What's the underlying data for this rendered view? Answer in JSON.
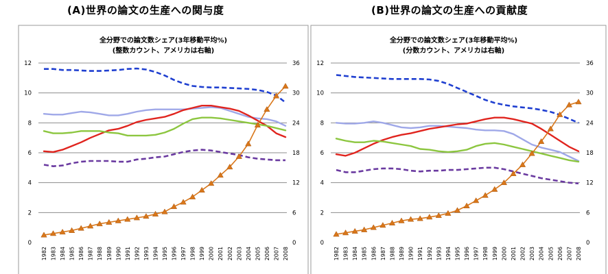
{
  "header": {
    "title_a": "(A)世界の論文の生産への関与度",
    "title_b": "(B)世界の論文の生産への貢献度"
  },
  "colors": {
    "blue_dashed": "#1f3fd0",
    "lavender": "#9fa8e8",
    "red": "#e0241e",
    "green": "#8cc63f",
    "purple_dashed": "#6a3aa0",
    "orange_marker": "#d9771a"
  },
  "chart_data": [
    {
      "type": "line",
      "title": "全分野での論文数シェア(3年移動平均%)",
      "subtitle": "(整数カウント、アメリカは右軸)",
      "x": [
        1982,
        1983,
        1984,
        1985,
        1986,
        1987,
        1988,
        1989,
        1990,
        1991,
        1992,
        1993,
        1994,
        1995,
        1996,
        1997,
        1998,
        1999,
        2000,
        2001,
        2002,
        2003,
        2004,
        2005,
        2006,
        2007,
        2008
      ],
      "left_ticks": [
        "0",
        "2",
        "4",
        "6",
        "8",
        "10",
        "12"
      ],
      "right_ticks": [
        "0",
        "6",
        "12",
        "18",
        "24",
        "30",
        "36"
      ],
      "ylim": [
        0,
        12
      ],
      "y2lim": [
        0,
        36
      ],
      "grid": true,
      "series": [
        {
          "color": "blue_dashed",
          "style": "dashed",
          "axis": "right",
          "values": [
            34.8,
            34.8,
            34.6,
            34.6,
            34.5,
            34.4,
            34.4,
            34.5,
            34.6,
            34.8,
            34.9,
            34.7,
            34.2,
            33.5,
            32.6,
            31.9,
            31.4,
            31.2,
            31.1,
            31.1,
            31.0,
            30.9,
            30.8,
            30.6,
            30.2,
            29.5,
            28.1
          ]
        },
        {
          "color": "lavender",
          "style": "solid",
          "axis": "left",
          "values": [
            8.6,
            8.55,
            8.55,
            8.65,
            8.75,
            8.7,
            8.6,
            8.5,
            8.5,
            8.6,
            8.75,
            8.85,
            8.9,
            8.9,
            8.9,
            8.9,
            8.95,
            9.0,
            9.05,
            9.0,
            8.8,
            8.6,
            8.4,
            8.3,
            8.25,
            8.1,
            7.8
          ]
        },
        {
          "color": "red",
          "style": "solid",
          "axis": "left",
          "values": [
            6.1,
            6.05,
            6.2,
            6.45,
            6.7,
            7.0,
            7.25,
            7.5,
            7.6,
            7.8,
            8.05,
            8.2,
            8.3,
            8.4,
            8.6,
            8.85,
            9.0,
            9.15,
            9.15,
            9.05,
            8.95,
            8.8,
            8.5,
            8.15,
            7.8,
            7.3,
            7.05
          ]
        },
        {
          "color": "green",
          "style": "solid",
          "axis": "left",
          "values": [
            7.45,
            7.3,
            7.3,
            7.35,
            7.45,
            7.45,
            7.45,
            7.35,
            7.3,
            7.15,
            7.15,
            7.15,
            7.2,
            7.35,
            7.6,
            7.95,
            8.25,
            8.35,
            8.35,
            8.3,
            8.2,
            8.1,
            8.0,
            7.9,
            7.8,
            7.65,
            7.5
          ]
        },
        {
          "color": "purple_dashed",
          "style": "dashed",
          "axis": "left",
          "values": [
            5.2,
            5.1,
            5.15,
            5.3,
            5.4,
            5.45,
            5.45,
            5.45,
            5.4,
            5.4,
            5.55,
            5.6,
            5.7,
            5.75,
            5.9,
            6.05,
            6.15,
            6.2,
            6.15,
            6.05,
            5.95,
            5.85,
            5.7,
            5.6,
            5.55,
            5.5,
            5.5
          ]
        },
        {
          "color": "orange_marker",
          "style": "solid-triangle",
          "axis": "left",
          "values": [
            0.5,
            0.6,
            0.7,
            0.8,
            0.95,
            1.1,
            1.25,
            1.35,
            1.45,
            1.55,
            1.65,
            1.75,
            1.9,
            2.05,
            2.4,
            2.7,
            3.05,
            3.5,
            3.95,
            4.5,
            5.05,
            5.75,
            6.6,
            7.85,
            8.9,
            9.8,
            10.45
          ]
        }
      ]
    },
    {
      "type": "line",
      "title": "全分野での論文数シェア(3年移動平均%)",
      "subtitle": "(分数カウント、アメリカは右軸)",
      "x": [
        1982,
        1983,
        1984,
        1985,
        1986,
        1987,
        1988,
        1989,
        1990,
        1991,
        1992,
        1993,
        1994,
        1995,
        1996,
        1997,
        1998,
        1999,
        2000,
        2001,
        2002,
        2003,
        2004,
        2005,
        2006,
        2007,
        2008
      ],
      "left_ticks": [
        "0",
        "2",
        "4",
        "6",
        "8",
        "10",
        "12"
      ],
      "right_ticks": [
        "0",
        "6",
        "12",
        "18",
        "24",
        "30",
        "36"
      ],
      "ylim": [
        0,
        12
      ],
      "y2lim": [
        0,
        36
      ],
      "grid": true,
      "series": [
        {
          "color": "blue_dashed",
          "style": "dashed",
          "axis": "right",
          "values": [
            33.6,
            33.4,
            33.2,
            33.1,
            33.0,
            32.9,
            32.8,
            32.8,
            32.8,
            32.8,
            32.7,
            32.4,
            31.8,
            31.0,
            30.2,
            29.4,
            28.6,
            28.0,
            27.6,
            27.3,
            27.1,
            26.9,
            26.6,
            26.2,
            25.6,
            24.8,
            24.0
          ]
        },
        {
          "color": "lavender",
          "style": "solid",
          "axis": "left",
          "values": [
            8.0,
            7.95,
            7.95,
            8.0,
            8.1,
            8.0,
            7.85,
            7.7,
            7.65,
            7.7,
            7.8,
            7.8,
            7.75,
            7.7,
            7.65,
            7.55,
            7.5,
            7.5,
            7.45,
            7.25,
            6.9,
            6.55,
            6.35,
            6.2,
            6.05,
            5.75,
            5.45
          ]
        },
        {
          "color": "red",
          "style": "solid",
          "axis": "left",
          "values": [
            5.9,
            5.8,
            6.0,
            6.3,
            6.6,
            6.85,
            7.05,
            7.2,
            7.3,
            7.45,
            7.6,
            7.7,
            7.8,
            7.9,
            7.95,
            8.1,
            8.25,
            8.35,
            8.35,
            8.25,
            8.1,
            7.95,
            7.6,
            7.2,
            6.8,
            6.4,
            6.1
          ]
        },
        {
          "color": "green",
          "style": "solid",
          "axis": "left",
          "values": [
            6.95,
            6.8,
            6.7,
            6.7,
            6.8,
            6.75,
            6.65,
            6.55,
            6.45,
            6.25,
            6.2,
            6.1,
            6.05,
            6.1,
            6.2,
            6.45,
            6.6,
            6.65,
            6.55,
            6.4,
            6.25,
            6.1,
            5.95,
            5.8,
            5.65,
            5.5,
            5.4
          ]
        },
        {
          "color": "purple_dashed",
          "style": "dashed",
          "axis": "left",
          "values": [
            4.85,
            4.7,
            4.7,
            4.8,
            4.9,
            4.95,
            4.95,
            4.9,
            4.8,
            4.75,
            4.8,
            4.8,
            4.85,
            4.85,
            4.9,
            4.95,
            5.0,
            5.0,
            4.9,
            4.75,
            4.6,
            4.45,
            4.3,
            4.2,
            4.1,
            4.0,
            3.95
          ]
        },
        {
          "color": "orange_marker",
          "style": "solid-triangle",
          "axis": "left",
          "values": [
            0.55,
            0.65,
            0.75,
            0.85,
            1.0,
            1.15,
            1.3,
            1.45,
            1.55,
            1.6,
            1.7,
            1.8,
            1.95,
            2.15,
            2.45,
            2.8,
            3.15,
            3.55,
            4.0,
            4.6,
            5.2,
            5.95,
            6.75,
            7.6,
            8.55,
            9.2,
            9.4
          ]
        }
      ]
    }
  ]
}
